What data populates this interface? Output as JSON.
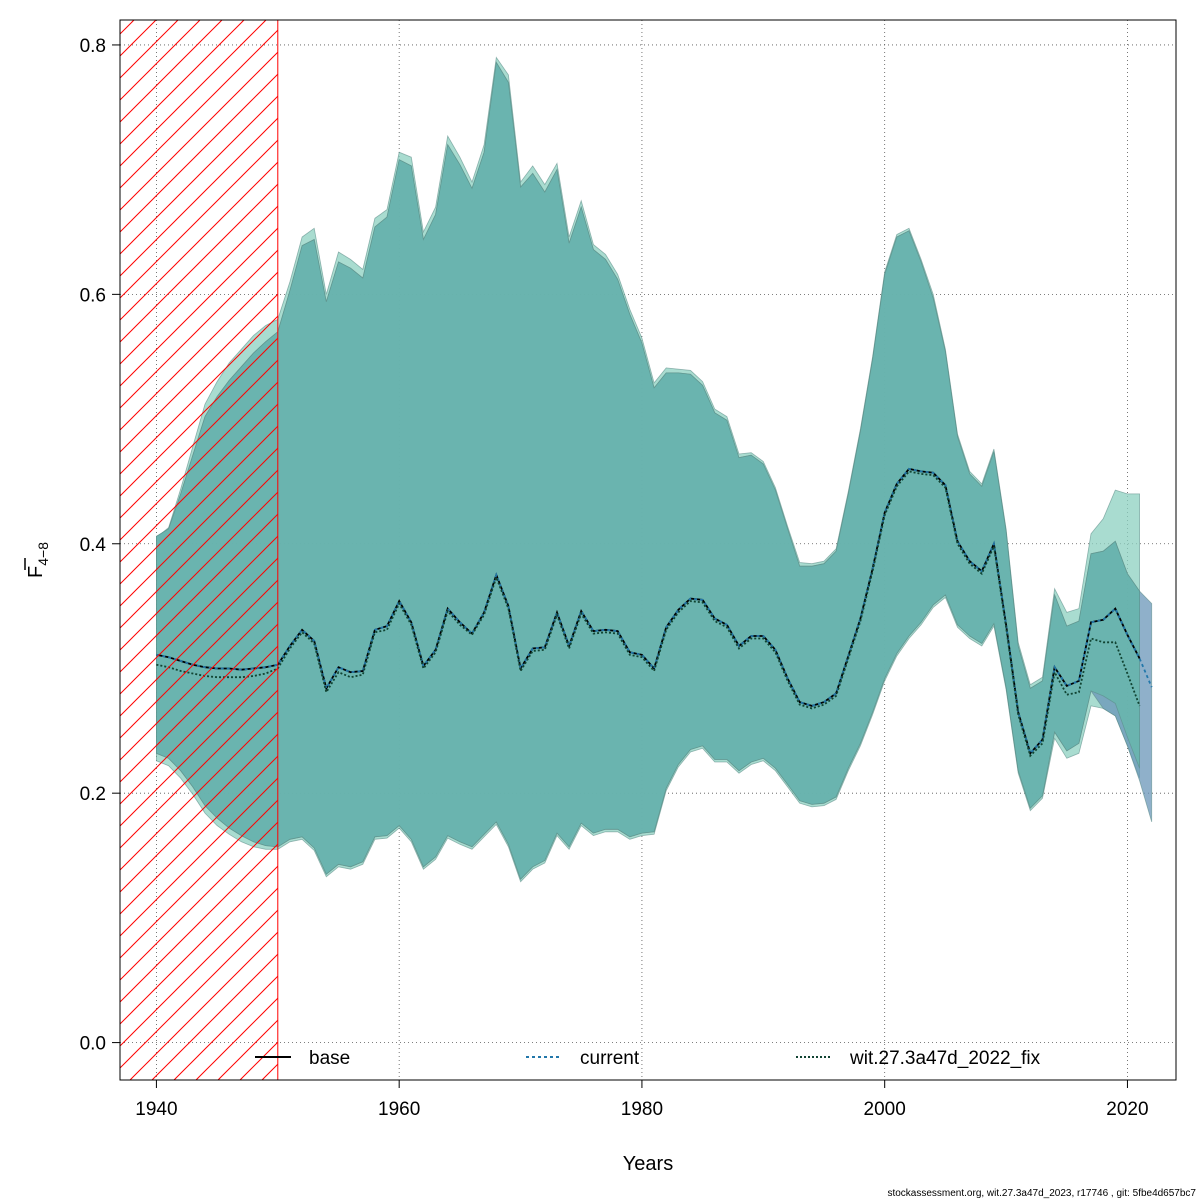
{
  "chart_data": {
    "type": "line",
    "xlabel": "Years",
    "ylabel_main": "F",
    "ylabel_sub": "4−8",
    "xlim": [
      1937,
      2024
    ],
    "ylim": [
      -0.03,
      0.82
    ],
    "xticks": [
      1940,
      1960,
      1980,
      2000,
      2020
    ],
    "xtick_labels": [
      "1940",
      "1960",
      "1980",
      "2000",
      "2020"
    ],
    "yticks": [
      0.0,
      0.2,
      0.4,
      0.6,
      0.8
    ],
    "ytick_labels": [
      "0.0",
      "0.2",
      "0.4",
      "0.6",
      "0.8"
    ],
    "grid": true,
    "legend_position": "bottom",
    "shaded_region": {
      "from": 1937,
      "to": 1950,
      "color": "#ff0000",
      "pattern": "hatched"
    },
    "footnote": "stockassessment.org, wit.27.3a47d_2023, r17746 , git: 5fbe4d657bc7",
    "series": [
      {
        "name": "base",
        "color": "#000000",
        "dash": "solid",
        "band_color": "#66b8aa",
        "x": [
          1940,
          1941,
          1942,
          1943,
          1944,
          1945,
          1946,
          1947,
          1948,
          1949,
          1950,
          1951,
          1952,
          1953,
          1954,
          1955,
          1956,
          1957,
          1958,
          1959,
          1960,
          1961,
          1962,
          1963,
          1964,
          1965,
          1966,
          1967,
          1968,
          1969,
          1970,
          1971,
          1972,
          1973,
          1974,
          1975,
          1976,
          1977,
          1978,
          1979,
          1980,
          1981,
          1982,
          1983,
          1984,
          1985,
          1986,
          1987,
          1988,
          1989,
          1990,
          1991,
          1992,
          1993,
          1994,
          1995,
          1996,
          1997,
          1998,
          1999,
          2000,
          2001,
          2002,
          2003,
          2004,
          2005,
          2006,
          2007,
          2008,
          2009,
          2010,
          2011,
          2012,
          2013,
          2014,
          2015,
          2016,
          2017,
          2018,
          2019,
          2020,
          2021
        ],
        "y": [
          0.311,
          0.309,
          0.306,
          0.303,
          0.301,
          0.3,
          0.3,
          0.299,
          0.3,
          0.301,
          0.303,
          0.318,
          0.331,
          0.322,
          0.284,
          0.301,
          0.297,
          0.298,
          0.331,
          0.334,
          0.354,
          0.337,
          0.302,
          0.315,
          0.348,
          0.337,
          0.328,
          0.345,
          0.375,
          0.35,
          0.3,
          0.316,
          0.317,
          0.345,
          0.318,
          0.346,
          0.33,
          0.331,
          0.33,
          0.313,
          0.311,
          0.3,
          0.333,
          0.347,
          0.356,
          0.355,
          0.34,
          0.335,
          0.318,
          0.326,
          0.326,
          0.315,
          0.292,
          0.273,
          0.27,
          0.273,
          0.28,
          0.31,
          0.34,
          0.38,
          0.425,
          0.448,
          0.46,
          0.458,
          0.457,
          0.447,
          0.402,
          0.386,
          0.378,
          0.4,
          0.335,
          0.265,
          0.232,
          0.243,
          0.301,
          0.286,
          0.29,
          0.337,
          0.339,
          0.348,
          0.327,
          0.308
        ],
        "lower": [
          0.232,
          0.228,
          0.218,
          0.205,
          0.19,
          0.18,
          0.172,
          0.166,
          0.161,
          0.158,
          0.157,
          0.163,
          0.165,
          0.156,
          0.135,
          0.143,
          0.141,
          0.145,
          0.165,
          0.166,
          0.174,
          0.163,
          0.141,
          0.149,
          0.166,
          0.161,
          0.157,
          0.167,
          0.177,
          0.159,
          0.131,
          0.141,
          0.146,
          0.168,
          0.157,
          0.176,
          0.168,
          0.171,
          0.171,
          0.165,
          0.168,
          0.169,
          0.204,
          0.223,
          0.235,
          0.238,
          0.227,
          0.227,
          0.218,
          0.225,
          0.228,
          0.22,
          0.207,
          0.194,
          0.191,
          0.192,
          0.197,
          0.22,
          0.24,
          0.265,
          0.292,
          0.312,
          0.326,
          0.337,
          0.351,
          0.359,
          0.335,
          0.326,
          0.32,
          0.336,
          0.285,
          0.218,
          0.188,
          0.198,
          0.249,
          0.234,
          0.24,
          0.282,
          0.278,
          0.272,
          0.245,
          0.22
        ],
        "upper": [
          0.406,
          0.412,
          0.44,
          0.471,
          0.502,
          0.518,
          0.531,
          0.542,
          0.553,
          0.562,
          0.57,
          0.603,
          0.639,
          0.644,
          0.594,
          0.626,
          0.621,
          0.613,
          0.654,
          0.662,
          0.708,
          0.703,
          0.644,
          0.664,
          0.72,
          0.704,
          0.685,
          0.714,
          0.786,
          0.77,
          0.686,
          0.697,
          0.682,
          0.7,
          0.641,
          0.67,
          0.636,
          0.628,
          0.612,
          0.584,
          0.561,
          0.525,
          0.537,
          0.537,
          0.536,
          0.527,
          0.505,
          0.499,
          0.469,
          0.471,
          0.464,
          0.443,
          0.412,
          0.382,
          0.382,
          0.384,
          0.394,
          0.44,
          0.49,
          0.548,
          0.616,
          0.646,
          0.651,
          0.626,
          0.597,
          0.554,
          0.486,
          0.456,
          0.446,
          0.474,
          0.41,
          0.318,
          0.284,
          0.29,
          0.359,
          0.334,
          0.338,
          0.392,
          0.394,
          0.402,
          0.376,
          0.362
        ]
      },
      {
        "name": "current",
        "color": "#2277aa",
        "dash": "3,3",
        "band_color": "#6a96b8",
        "x": [
          1940,
          1941,
          1942,
          1943,
          1944,
          1945,
          1946,
          1947,
          1948,
          1949,
          1950,
          1951,
          1952,
          1953,
          1954,
          1955,
          1956,
          1957,
          1958,
          1959,
          1960,
          1961,
          1962,
          1963,
          1964,
          1965,
          1966,
          1967,
          1968,
          1969,
          1970,
          1971,
          1972,
          1973,
          1974,
          1975,
          1976,
          1977,
          1978,
          1979,
          1980,
          1981,
          1982,
          1983,
          1984,
          1985,
          1986,
          1987,
          1988,
          1989,
          1990,
          1991,
          1992,
          1993,
          1994,
          1995,
          1996,
          1997,
          1998,
          1999,
          2000,
          2001,
          2002,
          2003,
          2004,
          2005,
          2006,
          2007,
          2008,
          2009,
          2010,
          2011,
          2012,
          2013,
          2014,
          2015,
          2016,
          2017,
          2018,
          2019,
          2020,
          2021,
          2022
        ],
        "y": [
          0.311,
          0.309,
          0.306,
          0.303,
          0.301,
          0.3,
          0.3,
          0.299,
          0.3,
          0.301,
          0.303,
          0.318,
          0.331,
          0.322,
          0.284,
          0.301,
          0.297,
          0.298,
          0.331,
          0.334,
          0.354,
          0.337,
          0.302,
          0.315,
          0.348,
          0.337,
          0.328,
          0.345,
          0.375,
          0.35,
          0.3,
          0.316,
          0.317,
          0.345,
          0.318,
          0.346,
          0.33,
          0.331,
          0.33,
          0.313,
          0.311,
          0.3,
          0.333,
          0.347,
          0.356,
          0.355,
          0.34,
          0.335,
          0.318,
          0.326,
          0.326,
          0.315,
          0.292,
          0.273,
          0.27,
          0.273,
          0.28,
          0.31,
          0.34,
          0.38,
          0.425,
          0.448,
          0.46,
          0.458,
          0.457,
          0.447,
          0.402,
          0.386,
          0.378,
          0.4,
          0.335,
          0.265,
          0.232,
          0.243,
          0.301,
          0.286,
          0.29,
          0.337,
          0.339,
          0.348,
          0.327,
          0.308,
          0.285
        ],
        "lower": [
          0.232,
          0.228,
          0.218,
          0.205,
          0.19,
          0.18,
          0.172,
          0.166,
          0.161,
          0.158,
          0.157,
          0.163,
          0.165,
          0.156,
          0.135,
          0.143,
          0.141,
          0.145,
          0.165,
          0.166,
          0.174,
          0.163,
          0.141,
          0.149,
          0.166,
          0.161,
          0.157,
          0.167,
          0.177,
          0.159,
          0.131,
          0.141,
          0.146,
          0.168,
          0.157,
          0.176,
          0.168,
          0.171,
          0.171,
          0.165,
          0.168,
          0.169,
          0.204,
          0.223,
          0.235,
          0.238,
          0.227,
          0.227,
          0.218,
          0.225,
          0.228,
          0.22,
          0.207,
          0.194,
          0.191,
          0.192,
          0.197,
          0.22,
          0.24,
          0.265,
          0.292,
          0.312,
          0.326,
          0.337,
          0.351,
          0.359,
          0.335,
          0.326,
          0.32,
          0.336,
          0.285,
          0.218,
          0.188,
          0.198,
          0.249,
          0.234,
          0.24,
          0.282,
          0.268,
          0.262,
          0.238,
          0.21,
          0.177
        ],
        "upper": [
          0.406,
          0.412,
          0.44,
          0.471,
          0.502,
          0.518,
          0.531,
          0.542,
          0.553,
          0.562,
          0.57,
          0.603,
          0.639,
          0.644,
          0.594,
          0.626,
          0.621,
          0.613,
          0.654,
          0.662,
          0.708,
          0.703,
          0.644,
          0.664,
          0.72,
          0.704,
          0.685,
          0.714,
          0.786,
          0.77,
          0.686,
          0.697,
          0.682,
          0.7,
          0.641,
          0.67,
          0.636,
          0.628,
          0.612,
          0.584,
          0.561,
          0.525,
          0.537,
          0.537,
          0.536,
          0.527,
          0.505,
          0.499,
          0.469,
          0.471,
          0.464,
          0.443,
          0.412,
          0.382,
          0.382,
          0.384,
          0.394,
          0.44,
          0.49,
          0.548,
          0.616,
          0.646,
          0.651,
          0.626,
          0.597,
          0.554,
          0.486,
          0.456,
          0.446,
          0.474,
          0.41,
          0.318,
          0.284,
          0.29,
          0.359,
          0.334,
          0.338,
          0.392,
          0.394,
          0.402,
          0.376,
          0.362,
          0.352
        ]
      },
      {
        "name": "wit.27.3a47d_2022_fix",
        "color": "#114433",
        "dash": "2,2",
        "band_color": "#8cd0c0",
        "x": [
          1940,
          1941,
          1942,
          1943,
          1944,
          1945,
          1946,
          1947,
          1948,
          1949,
          1950,
          1951,
          1952,
          1953,
          1954,
          1955,
          1956,
          1957,
          1958,
          1959,
          1960,
          1961,
          1962,
          1963,
          1964,
          1965,
          1966,
          1967,
          1968,
          1969,
          1970,
          1971,
          1972,
          1973,
          1974,
          1975,
          1976,
          1977,
          1978,
          1979,
          1980,
          1981,
          1982,
          1983,
          1984,
          1985,
          1986,
          1987,
          1988,
          1989,
          1990,
          1991,
          1992,
          1993,
          1994,
          1995,
          1996,
          1997,
          1998,
          1999,
          2000,
          2001,
          2002,
          2003,
          2004,
          2005,
          2006,
          2007,
          2008,
          2009,
          2010,
          2011,
          2012,
          2013,
          2014,
          2015,
          2016,
          2017,
          2018,
          2019,
          2020,
          2021
        ],
        "y": [
          0.303,
          0.301,
          0.298,
          0.296,
          0.294,
          0.293,
          0.293,
          0.293,
          0.294,
          0.296,
          0.3,
          0.316,
          0.329,
          0.32,
          0.281,
          0.297,
          0.293,
          0.295,
          0.329,
          0.331,
          0.352,
          0.335,
          0.3,
          0.313,
          0.346,
          0.335,
          0.327,
          0.343,
          0.373,
          0.348,
          0.298,
          0.314,
          0.315,
          0.343,
          0.316,
          0.344,
          0.328,
          0.329,
          0.328,
          0.311,
          0.309,
          0.298,
          0.331,
          0.345,
          0.354,
          0.353,
          0.338,
          0.333,
          0.316,
          0.324,
          0.324,
          0.313,
          0.29,
          0.271,
          0.268,
          0.271,
          0.278,
          0.308,
          0.338,
          0.378,
          0.423,
          0.446,
          0.458,
          0.456,
          0.455,
          0.445,
          0.4,
          0.384,
          0.376,
          0.398,
          0.333,
          0.263,
          0.23,
          0.24,
          0.297,
          0.279,
          0.281,
          0.324,
          0.321,
          0.321,
          0.296,
          0.27
        ],
        "lower": [
          0.226,
          0.222,
          0.212,
          0.199,
          0.184,
          0.174,
          0.167,
          0.161,
          0.157,
          0.155,
          0.155,
          0.161,
          0.163,
          0.154,
          0.133,
          0.141,
          0.139,
          0.143,
          0.163,
          0.164,
          0.172,
          0.161,
          0.139,
          0.147,
          0.164,
          0.159,
          0.155,
          0.165,
          0.175,
          0.157,
          0.129,
          0.139,
          0.144,
          0.166,
          0.155,
          0.174,
          0.166,
          0.169,
          0.169,
          0.163,
          0.166,
          0.167,
          0.202,
          0.221,
          0.233,
          0.236,
          0.225,
          0.225,
          0.216,
          0.223,
          0.226,
          0.218,
          0.205,
          0.192,
          0.189,
          0.19,
          0.195,
          0.218,
          0.238,
          0.263,
          0.29,
          0.31,
          0.324,
          0.335,
          0.349,
          0.357,
          0.333,
          0.324,
          0.318,
          0.334,
          0.283,
          0.216,
          0.186,
          0.196,
          0.244,
          0.228,
          0.232,
          0.27,
          0.268,
          0.262,
          0.238,
          0.212
        ],
        "upper": [
          0.405,
          0.413,
          0.444,
          0.478,
          0.512,
          0.53,
          0.545,
          0.556,
          0.567,
          0.575,
          0.58,
          0.61,
          0.646,
          0.653,
          0.6,
          0.634,
          0.628,
          0.62,
          0.661,
          0.668,
          0.714,
          0.71,
          0.65,
          0.67,
          0.727,
          0.71,
          0.69,
          0.72,
          0.79,
          0.776,
          0.69,
          0.703,
          0.688,
          0.705,
          0.646,
          0.675,
          0.64,
          0.632,
          0.616,
          0.588,
          0.565,
          0.529,
          0.541,
          0.54,
          0.539,
          0.53,
          0.508,
          0.502,
          0.472,
          0.473,
          0.466,
          0.445,
          0.414,
          0.385,
          0.384,
          0.386,
          0.396,
          0.442,
          0.492,
          0.55,
          0.618,
          0.648,
          0.653,
          0.628,
          0.6,
          0.556,
          0.488,
          0.458,
          0.448,
          0.476,
          0.412,
          0.321,
          0.287,
          0.293,
          0.364,
          0.345,
          0.348,
          0.408,
          0.42,
          0.443,
          0.44,
          0.44
        ]
      }
    ]
  }
}
